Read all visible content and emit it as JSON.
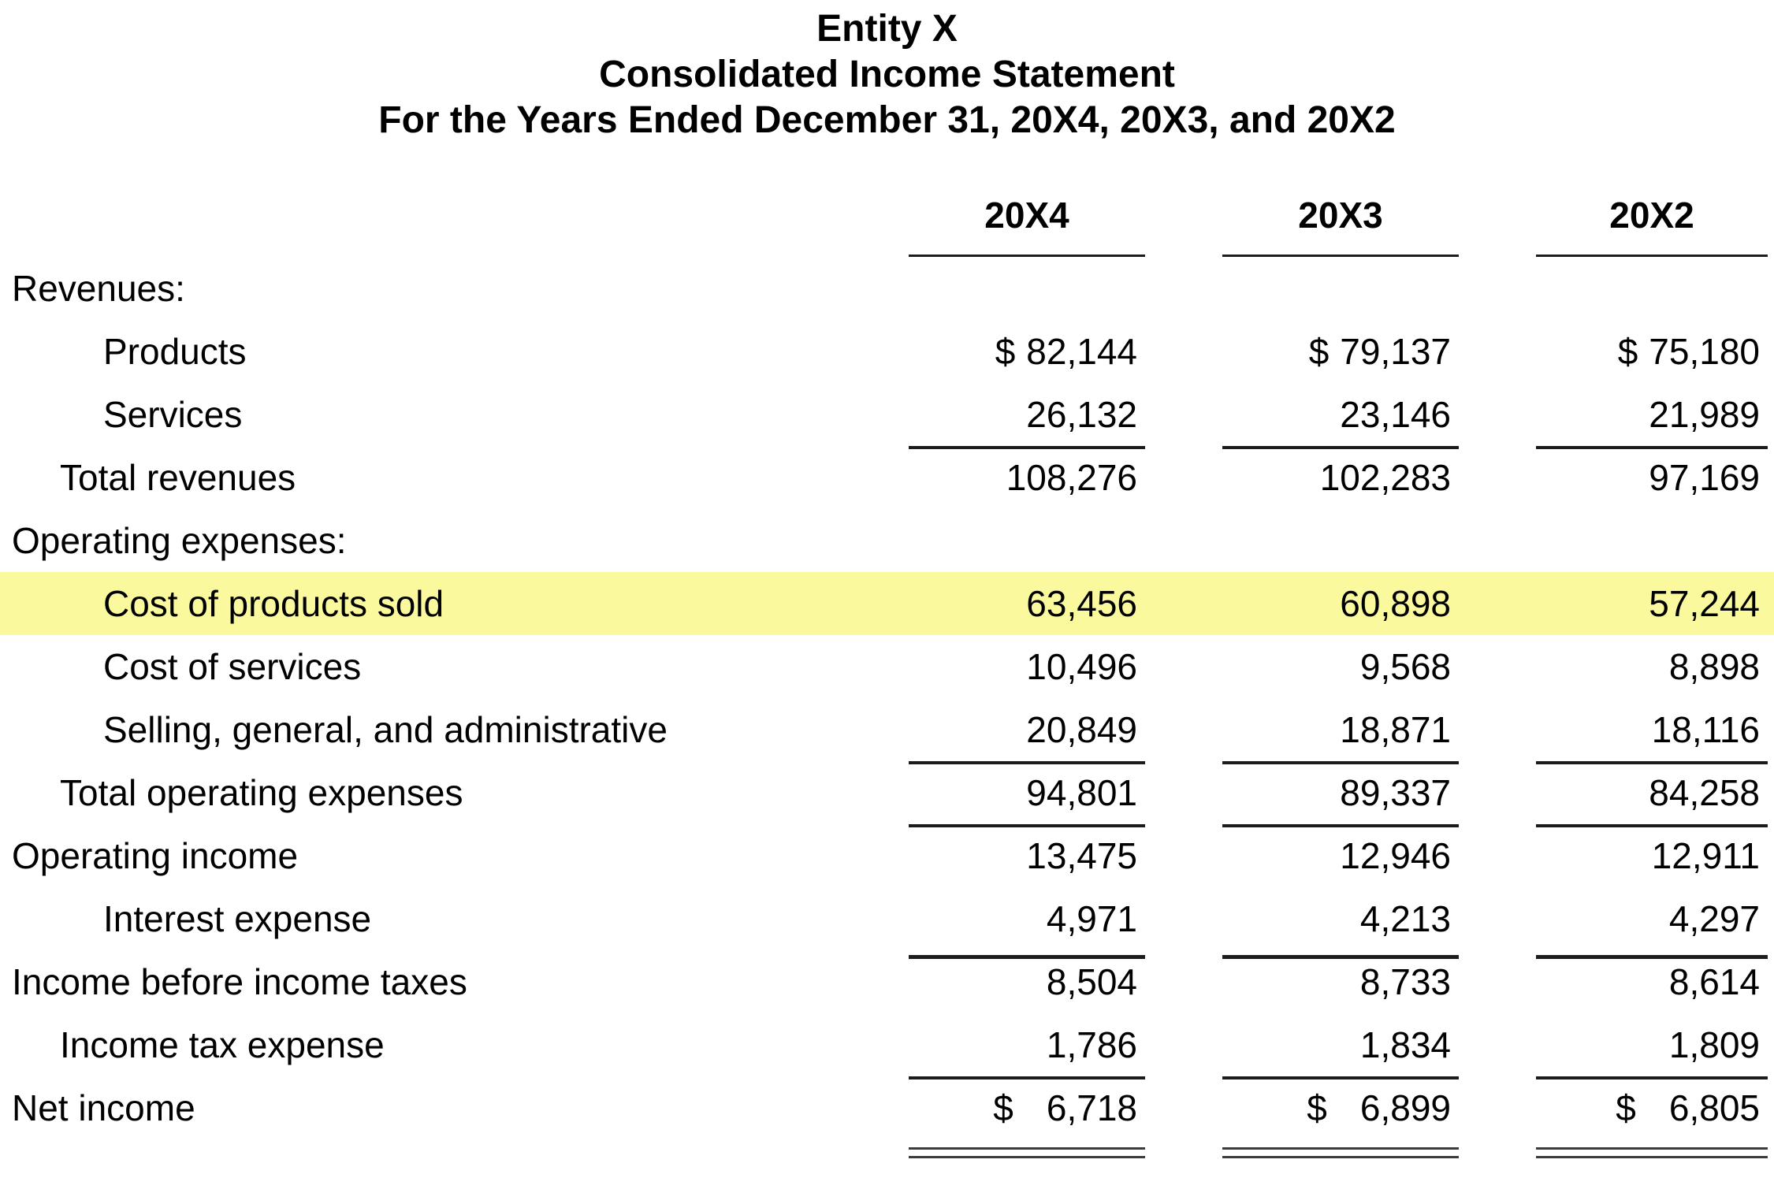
{
  "title": {
    "entity": "Entity X",
    "statement": "Consolidated Income Statement",
    "period": "For the Years Ended December 31, 20X4, 20X3, and 20X2"
  },
  "columns": [
    "20X4",
    "20X3",
    "20X2"
  ],
  "rows": [
    {
      "label": "Revenues:",
      "indent": 0,
      "values": null
    },
    {
      "label": "Products",
      "indent": 2,
      "currency": "$",
      "values": [
        "82,144",
        "79,137",
        "75,180"
      ]
    },
    {
      "label": "Services",
      "indent": 2,
      "values": [
        "26,132",
        "23,146",
        "21,989"
      ],
      "underline": "single"
    },
    {
      "label": "Total revenues",
      "indent": 1,
      "values": [
        "108,276",
        "102,283",
        "97,169"
      ]
    },
    {
      "label": "Operating expenses:",
      "indent": 0,
      "values": null
    },
    {
      "label": "Cost of products sold",
      "indent": 2,
      "values": [
        "63,456",
        "60,898",
        "57,244"
      ],
      "highlight": true
    },
    {
      "label": "Cost of services",
      "indent": 2,
      "values": [
        "10,496",
        "9,568",
        "8,898"
      ]
    },
    {
      "label": "Selling, general, and administrative",
      "indent": 2,
      "values": [
        "20,849",
        "18,871",
        "18,116"
      ],
      "underline": "single"
    },
    {
      "label": "Total operating expenses",
      "indent": 1,
      "values": [
        "94,801",
        "89,337",
        "84,258"
      ],
      "underline": "single"
    },
    {
      "label": "Operating income",
      "indent": 0,
      "values": [
        "13,475",
        "12,946",
        "12,911"
      ]
    },
    {
      "label": "Interest expense",
      "indent": 2,
      "values": [
        "4,971",
        "4,213",
        "4,297"
      ],
      "underline": "single-thick"
    },
    {
      "label": "Income before income taxes",
      "indent": 0,
      "values": [
        "8,504",
        "8,733",
        "8,614"
      ]
    },
    {
      "label": "Income tax expense",
      "indent": 1,
      "values": [
        "1,786",
        "1,834",
        "1,809"
      ],
      "underline": "single"
    },
    {
      "label": "Net income",
      "indent": 0,
      "currency": "$",
      "values": [
        "6,718",
        "6,899",
        "6,805"
      ],
      "underline": "double"
    }
  ],
  "colors": {
    "highlight": "#FBF99E",
    "line": "#1C1C1C",
    "double_line": "#3C3C3C",
    "text": "#000000"
  }
}
